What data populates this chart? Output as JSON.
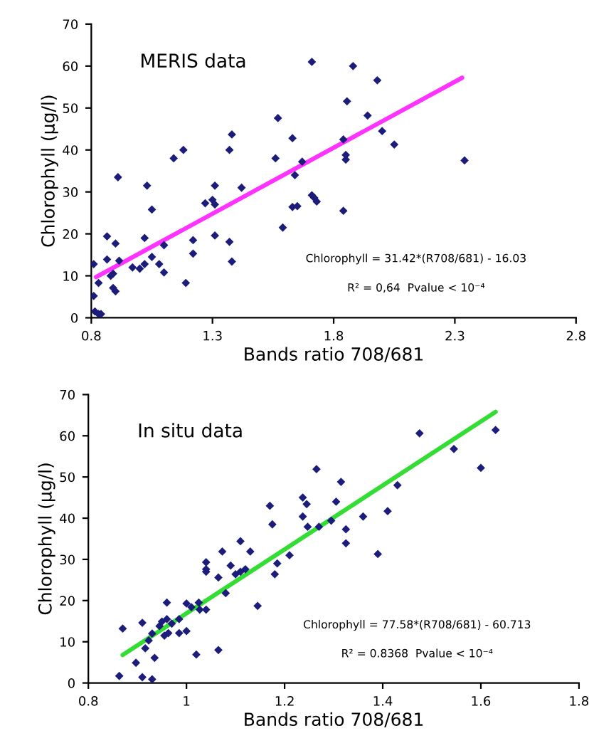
{
  "chart_data": [
    {
      "type": "scatter",
      "xlabel": "Bands ratio 708/681",
      "ylabel": "Chlorophyll (µg/l)",
      "xlim": [
        0.8,
        2.8
      ],
      "xticks": [
        0.8,
        1.3,
        1.8,
        2.3,
        2.8
      ],
      "ylim": [
        0,
        70
      ],
      "yticks": [
        0,
        10,
        20,
        30,
        40,
        50,
        60,
        70
      ],
      "grid": false,
      "annotations": [
        "MERIS data",
        "Chlorophyll = 31.42*(R708/681) - 16.03",
        "R² = 0,64  Pvalue < 10⁻⁴"
      ],
      "series": [
        {
          "color": "#1c1c7a",
          "marker": "diamond",
          "x": [
            0.81,
            0.81,
            0.83,
            0.815,
            0.83,
            0.84,
            0.865,
            0.865,
            0.88,
            0.89,
            0.9,
            0.89,
            0.9,
            0.91,
            0.915,
            0.97,
            1.0,
            1.02,
            1.03,
            1.05,
            1.02,
            1.05,
            1.08,
            1.1,
            1.1,
            1.14,
            1.18,
            1.19,
            1.22,
            1.22,
            1.27,
            1.3,
            1.31,
            1.31,
            1.31,
            1.37,
            1.38,
            1.37,
            1.38,
            1.42,
            1.57,
            1.56,
            1.59,
            1.63,
            1.63,
            1.64,
            1.65,
            1.67,
            1.71,
            1.71,
            1.72,
            1.73,
            1.84,
            1.84,
            1.85,
            1.85,
            1.855,
            1.88,
            1.94,
            1.98,
            2.0,
            2.05,
            2.34
          ],
          "values": [
            12.8,
            5.2,
            8.3,
            1.5,
            0.9,
            0.9,
            19.4,
            13.9,
            10,
            7.1,
            6.3,
            10.5,
            17.7,
            33.5,
            13.6,
            12,
            11.7,
            19,
            31.5,
            25.8,
            12.8,
            14.5,
            12.8,
            17.3,
            10.8,
            38,
            40,
            8.3,
            18.5,
            15.3,
            27.3,
            28.1,
            31.5,
            27,
            19.6,
            40,
            43.7,
            18.1,
            13.4,
            31,
            47.6,
            38,
            21.5,
            26.4,
            42.8,
            34,
            26.6,
            37.2,
            61,
            29.2,
            28.6,
            27.7,
            25.5,
            42.5,
            38.8,
            37.7,
            51.6,
            60,
            48.2,
            56.6,
            44.5,
            41.3,
            37.5
          ]
        },
        {
          "type": "line",
          "color": "#ff33ff",
          "x": [
            0.82,
            2.33
          ],
          "values": [
            9.7,
            57.2
          ]
        }
      ]
    },
    {
      "type": "scatter",
      "xlabel": "Bands ratio 708/681",
      "ylabel": "Chlorophyll (µg/l)",
      "xlim": [
        0.8,
        1.8
      ],
      "xticks": [
        0.8,
        1,
        1.2,
        1.4,
        1.6,
        1.8
      ],
      "ylim": [
        0,
        70
      ],
      "yticks": [
        0,
        10,
        20,
        30,
        40,
        50,
        60,
        70
      ],
      "grid": false,
      "annotations": [
        "In situ data",
        "Chlorophyll = 77.58*(R708/681) - 60.713",
        "R² = 0.8368  Pvalue < 10⁻⁴"
      ],
      "series": [
        {
          "color": "#1c1c7a",
          "marker": "diamond",
          "x": [
            0.863,
            0.87,
            0.897,
            0.91,
            0.91,
            0.93,
            0.916,
            0.923,
            0.935,
            0.93,
            0.945,
            0.95,
            0.96,
            0.96,
            0.955,
            0.963,
            0.97,
            0.985,
            0.985,
            1.0,
            1.0,
            1.01,
            1.02,
            1.025,
            1.027,
            1.04,
            1.04,
            1.04,
            1.04,
            1.065,
            1.065,
            1.073,
            1.08,
            1.09,
            1.1,
            1.11,
            1.11,
            1.12,
            1.13,
            1.145,
            1.17,
            1.175,
            1.18,
            1.185,
            1.21,
            1.237,
            1.237,
            1.245,
            1.247,
            1.265,
            1.27,
            1.295,
            1.305,
            1.315,
            1.325,
            1.325,
            1.36,
            1.39,
            1.41,
            1.43,
            1.475,
            1.545,
            1.6,
            1.63
          ],
          "values": [
            1.7,
            13.2,
            4.9,
            14.6,
            1.4,
            0.9,
            8.4,
            10.3,
            6.1,
            12,
            13.8,
            14.9,
            15.5,
            19.5,
            11.5,
            12.1,
            14.4,
            12.1,
            15.5,
            12.6,
            19.3,
            18.4,
            6.9,
            19.5,
            17.8,
            17.8,
            27.6,
            29.3,
            27,
            25.6,
            8,
            31.9,
            21.8,
            28.5,
            26.4,
            34.4,
            27,
            27.6,
            31.9,
            18.7,
            43,
            38.5,
            26.4,
            29,
            31,
            45,
            40.4,
            43.4,
            37.9,
            51.9,
            37.9,
            39.4,
            44,
            48.8,
            37.3,
            33.9,
            40.4,
            31.3,
            41.7,
            48,
            60.6,
            56.8,
            52.2,
            61.4
          ]
        },
        {
          "type": "line",
          "color": "#33dd33",
          "x": [
            0.87,
            1.63
          ],
          "values": [
            6.8,
            65.8
          ]
        }
      ]
    }
  ]
}
